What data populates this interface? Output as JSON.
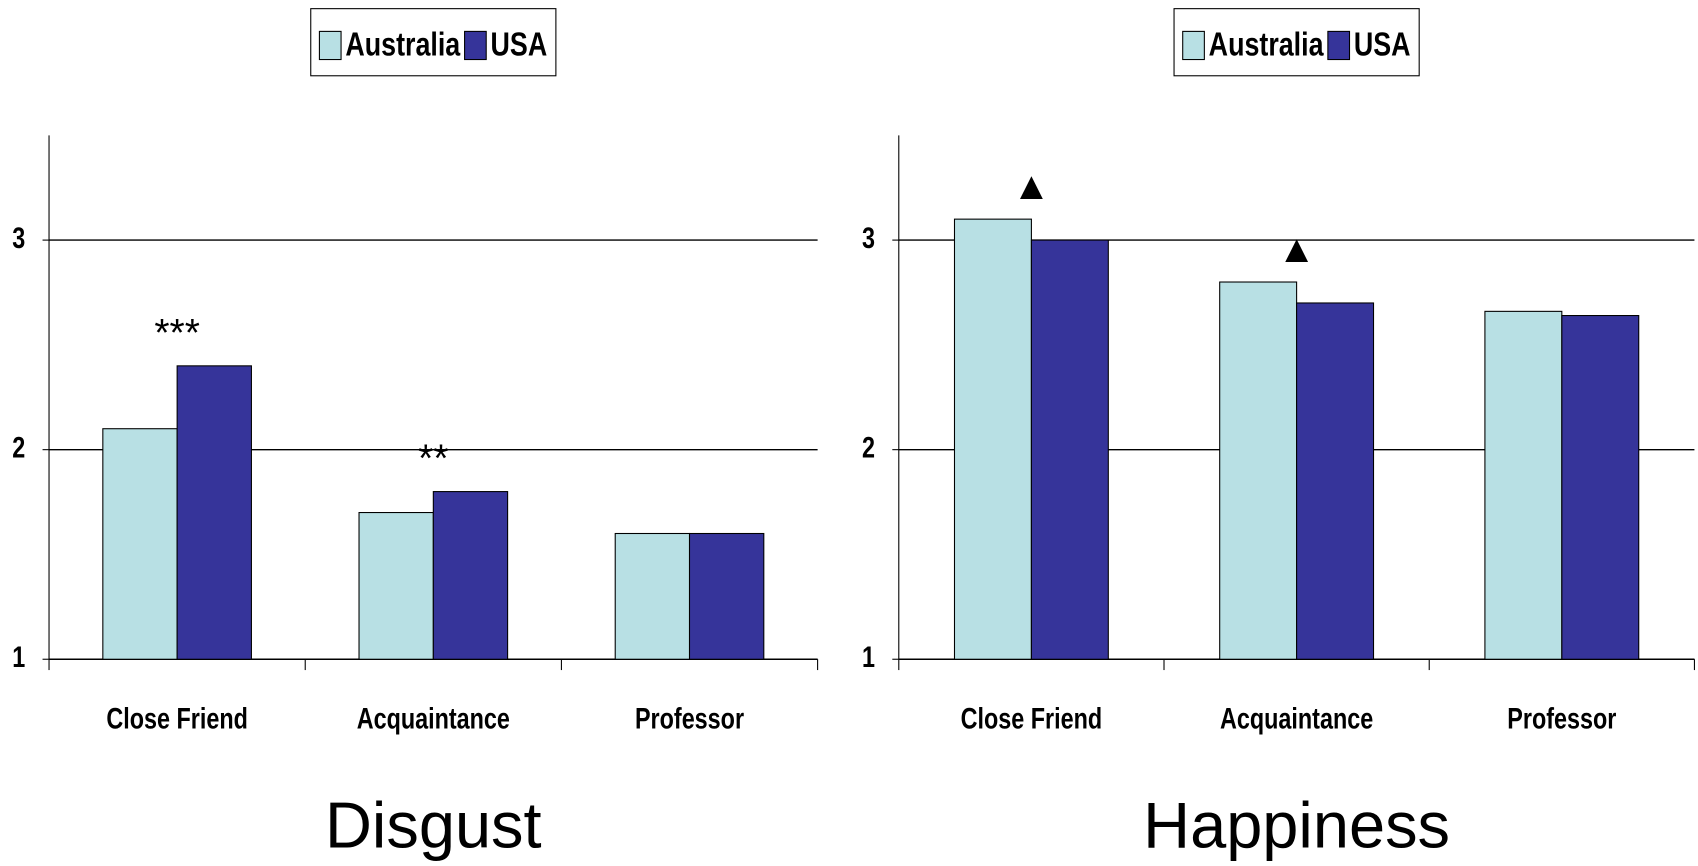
{
  "chart_data": [
    {
      "type": "bar",
      "title": "Disgust",
      "categories": [
        "Close Friend",
        "Acquaintance",
        "Professor"
      ],
      "series": [
        {
          "name": "Australia",
          "color": "#b8e0e4",
          "values": [
            2.1,
            1.7,
            1.6
          ]
        },
        {
          "name": "USA",
          "color": "#36349a",
          "values": [
            2.4,
            1.8,
            1.6
          ]
        }
      ],
      "annotations": [
        "***",
        "**",
        null
      ],
      "ylim": [
        1,
        3.5
      ],
      "yticks": [
        1,
        2,
        3
      ],
      "grid": true,
      "legend": "top"
    },
    {
      "type": "bar",
      "title": "Happiness",
      "categories": [
        "Close Friend",
        "Acquaintance",
        "Professor"
      ],
      "series": [
        {
          "name": "Australia",
          "color": "#b8e0e4",
          "values": [
            3.1,
            2.8,
            2.66
          ]
        },
        {
          "name": "USA",
          "color": "#36349a",
          "values": [
            3.0,
            2.7,
            2.64
          ]
        }
      ],
      "annotations": [
        "▲",
        "▲",
        null
      ],
      "ylim": [
        1,
        3.5
      ],
      "yticks": [
        1,
        2,
        3
      ],
      "grid": true,
      "legend": "top"
    }
  ]
}
